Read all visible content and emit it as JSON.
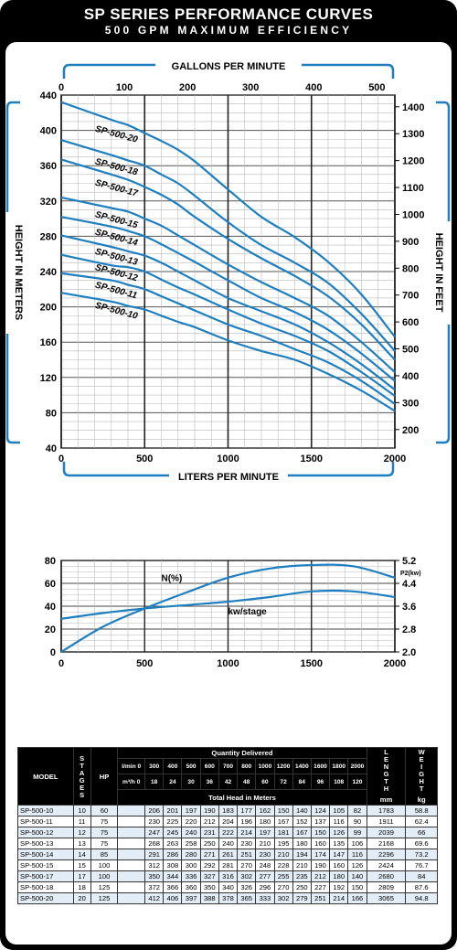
{
  "header": {
    "title": "SP SERIES PERFORMANCE CURVES",
    "subtitle": "500 GPM MAXIMUM EFFICIENCY"
  },
  "chart_data": [
    {
      "type": "line",
      "x_top_label": "GALLONS PER MINUTE",
      "x_top_ticks": [
        "0",
        "100",
        "200",
        "300",
        "400",
        "500"
      ],
      "xlabel": "LITERS PER MINUTE",
      "x_ticks": [
        "0",
        "500",
        "1000",
        "1500",
        "2000"
      ],
      "ylabel": "HEIGHT IN METERS",
      "y_ticks": [
        "40",
        "80",
        "120",
        "160",
        "200",
        "240",
        "280",
        "320",
        "360",
        "400",
        "440"
      ],
      "y_right_label": "HEIGHT IN FEET",
      "y_right_ticks": [
        "200",
        "300",
        "400",
        "500",
        "600",
        "700",
        "800",
        "900",
        "1000",
        "1100",
        "1200",
        "1300",
        "1400"
      ],
      "xlim": [
        0,
        2000
      ],
      "ylim": [
        40,
        440
      ],
      "grid": true,
      "curve_color": "#1e7fc0",
      "series": [
        {
          "name": "SP-500-20",
          "x": [
            0,
            300,
            400,
            500,
            600,
            700,
            800,
            1000,
            1200,
            1400,
            1600,
            1800,
            2000
          ],
          "y": [
            432,
            412,
            406,
            397,
            388,
            378,
            365,
            333,
            302,
            279,
            251,
            214,
            166
          ]
        },
        {
          "name": "SP-500-18",
          "x": [
            0,
            300,
            400,
            500,
            600,
            700,
            800,
            1000,
            1200,
            1400,
            1600,
            1800,
            2000
          ],
          "y": [
            389,
            372,
            366,
            360,
            350,
            340,
            326,
            296,
            270,
            250,
            227,
            192,
            150
          ]
        },
        {
          "name": "SP-500-17",
          "x": [
            0,
            300,
            400,
            500,
            600,
            700,
            800,
            1000,
            1200,
            1400,
            1600,
            1800,
            2000
          ],
          "y": [
            367,
            350,
            344,
            336,
            327,
            316,
            302,
            277,
            255,
            235,
            212,
            180,
            140
          ]
        },
        {
          "name": "SP-500-15",
          "x": [
            0,
            300,
            400,
            500,
            600,
            700,
            800,
            1000,
            1200,
            1400,
            1600,
            1800,
            2000
          ],
          "y": [
            324,
            312,
            308,
            300,
            292,
            281,
            270,
            248,
            228,
            210,
            190,
            160,
            126
          ]
        },
        {
          "name": "SP-500-14",
          "x": [
            0,
            300,
            400,
            500,
            600,
            700,
            800,
            1000,
            1200,
            1400,
            1600,
            1800,
            2000
          ],
          "y": [
            302,
            291,
            286,
            280,
            271,
            261,
            251,
            230,
            210,
            194,
            174,
            147,
            116
          ]
        },
        {
          "name": "SP-500-13",
          "x": [
            0,
            300,
            400,
            500,
            600,
            700,
            800,
            1000,
            1200,
            1400,
            1600,
            1800,
            2000
          ],
          "y": [
            281,
            268,
            263,
            258,
            250,
            240,
            230,
            210,
            195,
            180,
            160,
            135,
            106
          ]
        },
        {
          "name": "SP-500-12",
          "x": [
            0,
            300,
            400,
            500,
            600,
            700,
            800,
            1000,
            1200,
            1400,
            1600,
            1800,
            2000
          ],
          "y": [
            259,
            247,
            245,
            240,
            231,
            222,
            214,
            197,
            181,
            167,
            150,
            126,
            99
          ]
        },
        {
          "name": "SP-500-11",
          "x": [
            0,
            300,
            400,
            500,
            600,
            700,
            800,
            1000,
            1200,
            1400,
            1600,
            1800,
            2000
          ],
          "y": [
            238,
            230,
            225,
            220,
            212,
            204,
            196,
            180,
            167,
            152,
            137,
            116,
            90
          ]
        },
        {
          "name": "SP-500-10",
          "x": [
            0,
            300,
            400,
            500,
            600,
            700,
            800,
            1000,
            1200,
            1400,
            1600,
            1800,
            2000
          ],
          "y": [
            216,
            206,
            201,
            197,
            190,
            183,
            177,
            162,
            150,
            140,
            124,
            105,
            82
          ]
        }
      ]
    },
    {
      "type": "line",
      "x_ticks": [
        "0",
        "500",
        "1000",
        "1500",
        "2000"
      ],
      "xlim": [
        0,
        2000
      ],
      "y_ticks": [
        "0",
        "20",
        "40",
        "60",
        "80"
      ],
      "ylim": [
        0,
        80
      ],
      "y_right_ticks": [
        "2.0",
        "2.8",
        "3.6",
        "4.4",
        "5.2"
      ],
      "y_right_unit": "P2(kw)",
      "y_right_lim": [
        2.0,
        5.2
      ],
      "grid": true,
      "series": [
        {
          "name": "N(%)",
          "label": "N(%)",
          "x": [
            0,
            250,
            500,
            750,
            1000,
            1250,
            1500,
            1750,
            2000
          ],
          "y": [
            0,
            22,
            38,
            52,
            65,
            73,
            76,
            75,
            65
          ]
        },
        {
          "name": "kw/stage",
          "label": "kw/stage",
          "x": [
            0,
            250,
            500,
            750,
            1000,
            1250,
            1500,
            1750,
            2000
          ],
          "y": [
            29,
            34,
            38,
            41,
            44,
            48,
            53,
            53,
            48
          ]
        }
      ]
    },
    {
      "type": "table",
      "headers": {
        "model": "MODEL",
        "stages": "STAGES",
        "hp": "HP",
        "quantity": "Quantity Delivered",
        "lmin_label": "l/min",
        "m3h_label": "m³/h",
        "total_head": "Total Head in Meters",
        "length": "LENGTH",
        "length_unit": "mm",
        "weight": "WEIGHT",
        "weight_unit": "kg"
      },
      "lmin": [
        "0",
        "300",
        "400",
        "500",
        "600",
        "700",
        "800",
        "1000",
        "1200",
        "1400",
        "1600",
        "1800",
        "2000"
      ],
      "m3h": [
        "0",
        "18",
        "24",
        "30",
        "36",
        "42",
        "48",
        "60",
        "72",
        "84",
        "96",
        "108",
        "120"
      ],
      "rows": [
        {
          "model": "SP-500-10",
          "stages": "10",
          "hp": "60",
          "head": [
            "",
            "206",
            "201",
            "197",
            "190",
            "183",
            "177",
            "162",
            "150",
            "140",
            "124",
            "105",
            "82"
          ],
          "length": "1783",
          "weight": "58.8"
        },
        {
          "model": "SP-500-11",
          "stages": "11",
          "hp": "75",
          "head": [
            "",
            "230",
            "225",
            "220",
            "212",
            "204",
            "196",
            "180",
            "167",
            "152",
            "137",
            "116",
            "90"
          ],
          "length": "1911",
          "weight": "62.4"
        },
        {
          "model": "SP-500-12",
          "stages": "12",
          "hp": "75",
          "head": [
            "",
            "247",
            "245",
            "240",
            "231",
            "222",
            "214",
            "197",
            "181",
            "167",
            "150",
            "126",
            "99"
          ],
          "length": "2039",
          "weight": "66"
        },
        {
          "model": "SP-500-13",
          "stages": "13",
          "hp": "75",
          "head": [
            "",
            "268",
            "263",
            "258",
            "250",
            "240",
            "230",
            "210",
            "195",
            "180",
            "160",
            "135",
            "106"
          ],
          "length": "2168",
          "weight": "69.6"
        },
        {
          "model": "SP-500-14",
          "stages": "14",
          "hp": "85",
          "head": [
            "",
            "291",
            "286",
            "280",
            "271",
            "261",
            "251",
            "230",
            "210",
            "194",
            "174",
            "147",
            "116"
          ],
          "length": "2296",
          "weight": "73.2"
        },
        {
          "model": "SP-500-15",
          "stages": "15",
          "hp": "100",
          "head": [
            "",
            "312",
            "308",
            "300",
            "292",
            "281",
            "270",
            "248",
            "228",
            "210",
            "190",
            "160",
            "126"
          ],
          "length": "2424",
          "weight": "76.7"
        },
        {
          "model": "SP-500-17",
          "stages": "17",
          "hp": "100",
          "head": [
            "",
            "350",
            "344",
            "336",
            "327",
            "316",
            "302",
            "277",
            "255",
            "235",
            "212",
            "180",
            "140"
          ],
          "length": "2680",
          "weight": "84"
        },
        {
          "model": "SP-500-18",
          "stages": "18",
          "hp": "125",
          "head": [
            "",
            "372",
            "366",
            "360",
            "350",
            "340",
            "326",
            "296",
            "270",
            "250",
            "227",
            "192",
            "150"
          ],
          "length": "2809",
          "weight": "87.6"
        },
        {
          "model": "SP-500-20",
          "stages": "20",
          "hp": "125",
          "head": [
            "",
            "412",
            "406",
            "397",
            "388",
            "378",
            "365",
            "333",
            "302",
            "279",
            "251",
            "214",
            "166"
          ],
          "length": "3065",
          "weight": "94.8"
        }
      ]
    }
  ]
}
